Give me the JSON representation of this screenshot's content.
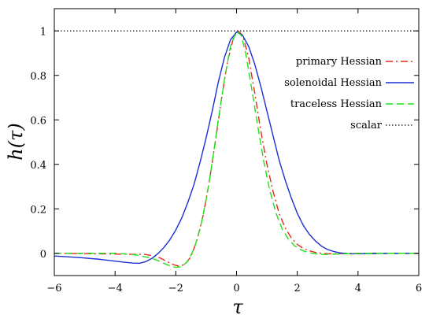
{
  "chart_data": {
    "type": "line",
    "xlabel": "τ",
    "ylabel": "h(τ)",
    "xlim": [
      -6,
      6
    ],
    "ylim": [
      -0.1,
      1.1
    ],
    "xticks": [
      -6,
      -4,
      -2,
      0,
      2,
      4,
      6
    ],
    "yticks": [
      0,
      0.2,
      0.4,
      0.6,
      0.8,
      1
    ],
    "grid": false,
    "legend_position": "right",
    "series": [
      {
        "name": "primary Hessian",
        "color": "#e8291c",
        "dash": "dash-dot",
        "x": [
          -6,
          -3,
          -2.7,
          -2.5,
          -2.3,
          -2.1,
          -1.9,
          -1.7,
          -1.5,
          -1.3,
          -1.1,
          -0.9,
          -0.7,
          -0.5,
          -0.3,
          -0.1,
          0.05,
          0.2,
          0.4,
          0.6,
          0.8,
          1.0,
          1.2,
          1.4,
          1.6,
          1.8,
          2.0,
          2.2,
          2.4,
          2.6,
          2.8,
          3.0,
          3.2,
          3.5,
          4,
          6
        ],
        "y": [
          0.0,
          -0.005,
          -0.012,
          -0.022,
          -0.036,
          -0.05,
          -0.058,
          -0.05,
          -0.015,
          0.06,
          0.17,
          0.32,
          0.5,
          0.69,
          0.86,
          0.97,
          1.0,
          0.98,
          0.88,
          0.72,
          0.55,
          0.4,
          0.28,
          0.18,
          0.115,
          0.07,
          0.04,
          0.022,
          0.011,
          0.004,
          0.0,
          -0.002,
          -0.002,
          -0.001,
          0.0,
          0.0
        ]
      },
      {
        "name": "solenoidal Hessian",
        "color": "#1a2fd6",
        "dash": "solid",
        "x": [
          -6,
          -5.5,
          -5,
          -4.5,
          -4,
          -3.7,
          -3.4,
          -3.2,
          -3.0,
          -2.8,
          -2.6,
          -2.4,
          -2.2,
          -2.0,
          -1.8,
          -1.6,
          -1.4,
          -1.2,
          -1.0,
          -0.8,
          -0.6,
          -0.4,
          -0.2,
          0.0,
          0.2,
          0.4,
          0.6,
          0.8,
          1.0,
          1.2,
          1.4,
          1.6,
          1.8,
          2.0,
          2.2,
          2.4,
          2.6,
          2.8,
          3.0,
          3.2,
          3.4,
          3.7,
          4,
          5,
          6
        ],
        "y": [
          -0.012,
          -0.016,
          -0.021,
          -0.027,
          -0.035,
          -0.04,
          -0.044,
          -0.045,
          -0.038,
          -0.024,
          -0.003,
          0.025,
          0.06,
          0.105,
          0.16,
          0.23,
          0.31,
          0.41,
          0.52,
          0.64,
          0.77,
          0.88,
          0.96,
          0.995,
          0.98,
          0.93,
          0.85,
          0.75,
          0.64,
          0.53,
          0.42,
          0.33,
          0.25,
          0.18,
          0.125,
          0.085,
          0.055,
          0.032,
          0.017,
          0.008,
          0.002,
          -0.002,
          -0.002,
          0.0,
          0.0
        ]
      },
      {
        "name": "traceless Hessian",
        "color": "#22e01a",
        "dash": "dash",
        "x": [
          -6,
          -4,
          -3.5,
          -3.2,
          -3.0,
          -2.8,
          -2.6,
          -2.4,
          -2.2,
          -2.0,
          -1.8,
          -1.6,
          -1.4,
          -1.2,
          -1.0,
          -0.8,
          -0.6,
          -0.4,
          -0.2,
          0.0,
          0.15,
          0.3,
          0.5,
          0.7,
          0.9,
          1.1,
          1.3,
          1.5,
          1.7,
          1.9,
          2.1,
          2.3,
          2.5,
          2.7,
          2.9,
          3.2,
          3.6,
          4.2,
          6
        ],
        "y": [
          0.0,
          0.0,
          -0.004,
          -0.01,
          -0.016,
          -0.022,
          -0.032,
          -0.045,
          -0.056,
          -0.063,
          -0.06,
          -0.035,
          0.02,
          0.11,
          0.24,
          0.41,
          0.6,
          0.78,
          0.93,
          1.0,
          0.98,
          0.9,
          0.74,
          0.57,
          0.41,
          0.28,
          0.18,
          0.11,
          0.065,
          0.035,
          0.017,
          0.006,
          0.0,
          -0.004,
          -0.005,
          -0.004,
          -0.002,
          0.0,
          0.0
        ]
      },
      {
        "name": "scalar",
        "color": "#000000",
        "dash": "dot",
        "x": [
          -6,
          6
        ],
        "y": [
          1,
          1
        ]
      }
    ]
  }
}
